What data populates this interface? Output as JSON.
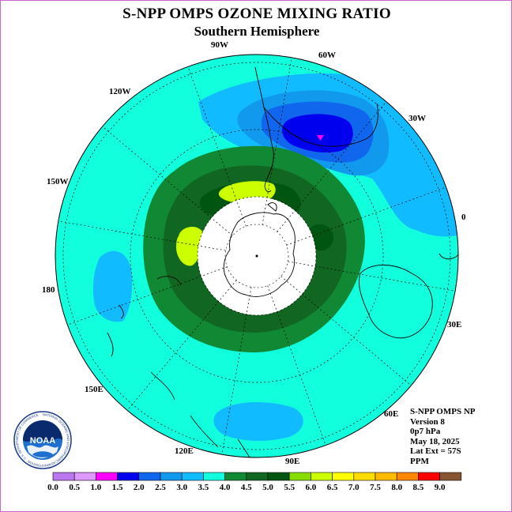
{
  "header": {
    "title": "S-NPP OMPS OZONE MIXING RATIO",
    "subtitle": "Southern Hemisphere"
  },
  "map": {
    "projection": "south-polar-stereographic",
    "longitude_labels": [
      "90W",
      "60W",
      "30W",
      "0",
      "30E",
      "60E",
      "90E",
      "120E",
      "150E",
      "180",
      "150W",
      "120W"
    ],
    "latitude_extent_label": "Lat Ext = 57S"
  },
  "info": {
    "line1": "S-NPP OMPS NP",
    "line2": "Version 8",
    "line3": "0p7 hPa",
    "line4": "May 18, 2025",
    "line5": "Lat Ext = 57S",
    "line6": "PPM"
  },
  "logo": {
    "text": "NOAA",
    "ring_text": "NATIONAL OCEANIC AND ATMOSPHERIC ADMINISTRATION · U.S. DEPARTMENT OF COMMERCE"
  },
  "legend": {
    "ticks": [
      "0.0",
      "0.5",
      "1.0",
      "1.5",
      "2.0",
      "2.5",
      "3.0",
      "3.5",
      "4.0",
      "4.5",
      "5.0",
      "5.5",
      "6.0",
      "6.5",
      "7.0",
      "7.5",
      "8.0",
      "8.5",
      "9.0"
    ],
    "colors": [
      "#bb77ee",
      "#dd99ff",
      "#ff00ff",
      "#0000ee",
      "#1166ee",
      "#1199ee",
      "#11bbff",
      "#11ffdd",
      "#118833",
      "#116622",
      "#005511",
      "#88dd00",
      "#ccff00",
      "#ffff00",
      "#ffdd00",
      "#ffbb00",
      "#ff8800",
      "#ff0000",
      "#885533"
    ]
  },
  "colors": {
    "background_field": "#11ffdd",
    "high_center": "#005511",
    "low_center": "#0000ee",
    "min_marker": "#ff00ff"
  }
}
